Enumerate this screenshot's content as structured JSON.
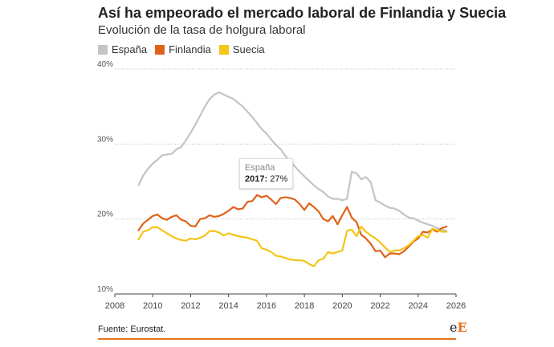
{
  "header": {
    "title": "Así ha empeorado el mercado laboral de Finlandia y Suecia",
    "subtitle": "Evolución de la tasa de holgura laboral"
  },
  "footer": {
    "source": "Fuente: Eurostat.",
    "logo_letters": [
      "e",
      "E"
    ]
  },
  "tooltip": {
    "series": "España",
    "year": "2017",
    "value": "27%"
  },
  "chart_data": {
    "type": "line",
    "x_range": [
      2008,
      2026
    ],
    "x_ticks": [
      "2008",
      "2010",
      "2012",
      "2014",
      "2016",
      "2018",
      "2020",
      "2022",
      "2024",
      "2026"
    ],
    "y_range": [
      10,
      40
    ],
    "y_ticks": [
      "10%",
      "20%",
      "30%",
      "40%"
    ],
    "grid": true,
    "legend": "top-left",
    "series": [
      {
        "name": "España",
        "color": "#c4c4c4",
        "points": [
          [
            2009.25,
            24.5
          ],
          [
            2009.5,
            25.8
          ],
          [
            2009.75,
            26.7
          ],
          [
            2010.0,
            27.4
          ],
          [
            2010.25,
            27.9
          ],
          [
            2010.5,
            28.5
          ],
          [
            2010.75,
            28.6
          ],
          [
            2011.0,
            28.7
          ],
          [
            2011.25,
            29.3
          ],
          [
            2011.5,
            29.6
          ],
          [
            2011.75,
            30.5
          ],
          [
            2012.0,
            31.5
          ],
          [
            2012.25,
            32.6
          ],
          [
            2012.5,
            33.8
          ],
          [
            2012.75,
            35.0
          ],
          [
            2013.0,
            36.0
          ],
          [
            2013.25,
            36.6
          ],
          [
            2013.5,
            36.9
          ],
          [
            2013.75,
            36.6
          ],
          [
            2014.0,
            36.3
          ],
          [
            2014.25,
            36.0
          ],
          [
            2014.5,
            35.5
          ],
          [
            2014.75,
            35.0
          ],
          [
            2015.0,
            34.3
          ],
          [
            2015.25,
            33.6
          ],
          [
            2015.5,
            32.8
          ],
          [
            2015.75,
            32.0
          ],
          [
            2016.0,
            31.4
          ],
          [
            2016.25,
            30.6
          ],
          [
            2016.5,
            29.9
          ],
          [
            2016.75,
            29.3
          ],
          [
            2017.0,
            28.4
          ],
          [
            2017.25,
            27.7
          ],
          [
            2017.5,
            27.0
          ],
          [
            2017.75,
            26.3
          ],
          [
            2018.0,
            25.7
          ],
          [
            2018.25,
            25.1
          ],
          [
            2018.5,
            24.5
          ],
          [
            2018.75,
            24.0
          ],
          [
            2019.0,
            23.6
          ],
          [
            2019.25,
            23.0
          ],
          [
            2019.5,
            22.7
          ],
          [
            2019.75,
            22.7
          ],
          [
            2020.0,
            22.5
          ],
          [
            2020.25,
            22.7
          ],
          [
            2020.5,
            26.3
          ],
          [
            2020.75,
            26.1
          ],
          [
            2021.0,
            25.3
          ],
          [
            2021.25,
            25.6
          ],
          [
            2021.5,
            24.9
          ],
          [
            2021.75,
            22.5
          ],
          [
            2022.0,
            22.2
          ],
          [
            2022.25,
            21.8
          ],
          [
            2022.5,
            21.5
          ],
          [
            2022.75,
            21.4
          ],
          [
            2023.0,
            21.1
          ],
          [
            2023.25,
            20.6
          ],
          [
            2023.5,
            20.2
          ],
          [
            2023.75,
            20.1
          ],
          [
            2024.0,
            19.8
          ],
          [
            2024.25,
            19.5
          ],
          [
            2024.5,
            19.3
          ],
          [
            2024.75,
            19.1
          ],
          [
            2025.0,
            18.8
          ],
          [
            2025.25,
            18.6
          ],
          [
            2025.5,
            18.4
          ]
        ]
      },
      {
        "name": "Finlandia",
        "color": "#e0621a",
        "points": [
          [
            2009.25,
            18.5
          ],
          [
            2009.5,
            19.4
          ],
          [
            2009.75,
            19.9
          ],
          [
            2010.0,
            20.4
          ],
          [
            2010.25,
            20.6
          ],
          [
            2010.5,
            20.1
          ],
          [
            2010.75,
            19.9
          ],
          [
            2011.0,
            20.3
          ],
          [
            2011.25,
            20.5
          ],
          [
            2011.5,
            19.9
          ],
          [
            2011.75,
            19.7
          ],
          [
            2012.0,
            19.1
          ],
          [
            2012.25,
            19.0
          ],
          [
            2012.5,
            20.0
          ],
          [
            2012.75,
            20.1
          ],
          [
            2013.0,
            20.5
          ],
          [
            2013.25,
            20.3
          ],
          [
            2013.5,
            20.4
          ],
          [
            2013.75,
            20.7
          ],
          [
            2014.0,
            21.1
          ],
          [
            2014.25,
            21.6
          ],
          [
            2014.5,
            21.3
          ],
          [
            2014.75,
            21.4
          ],
          [
            2015.0,
            22.3
          ],
          [
            2015.25,
            22.4
          ],
          [
            2015.5,
            23.2
          ],
          [
            2015.75,
            22.9
          ],
          [
            2016.0,
            23.1
          ],
          [
            2016.25,
            22.6
          ],
          [
            2016.5,
            22.0
          ],
          [
            2016.75,
            22.8
          ],
          [
            2017.0,
            22.9
          ],
          [
            2017.25,
            22.8
          ],
          [
            2017.5,
            22.6
          ],
          [
            2017.75,
            22.0
          ],
          [
            2018.0,
            21.2
          ],
          [
            2018.25,
            22.1
          ],
          [
            2018.5,
            21.6
          ],
          [
            2018.75,
            21.0
          ],
          [
            2019.0,
            20.0
          ],
          [
            2019.25,
            19.7
          ],
          [
            2019.5,
            20.4
          ],
          [
            2019.75,
            19.3
          ],
          [
            2020.0,
            20.5
          ],
          [
            2020.25,
            21.6
          ],
          [
            2020.5,
            20.2
          ],
          [
            2020.75,
            19.6
          ],
          [
            2021.0,
            17.9
          ],
          [
            2021.25,
            17.4
          ],
          [
            2021.5,
            16.7
          ],
          [
            2021.75,
            15.7
          ],
          [
            2022.0,
            15.8
          ],
          [
            2022.25,
            14.9
          ],
          [
            2022.5,
            15.4
          ],
          [
            2022.75,
            15.4
          ],
          [
            2023.0,
            15.3
          ],
          [
            2023.25,
            15.7
          ],
          [
            2023.5,
            16.3
          ],
          [
            2023.75,
            17.0
          ],
          [
            2024.0,
            17.4
          ],
          [
            2024.25,
            18.3
          ],
          [
            2024.5,
            18.2
          ],
          [
            2024.75,
            18.6
          ],
          [
            2025.0,
            18.3
          ],
          [
            2025.25,
            18.8
          ],
          [
            2025.5,
            19.0
          ]
        ]
      },
      {
        "name": "Suecia",
        "color": "#f2c517",
        "points": [
          [
            2009.25,
            17.3
          ],
          [
            2009.5,
            18.3
          ],
          [
            2009.75,
            18.5
          ],
          [
            2010.0,
            18.9
          ],
          [
            2010.25,
            18.9
          ],
          [
            2010.5,
            18.5
          ],
          [
            2010.75,
            18.1
          ],
          [
            2011.0,
            17.7
          ],
          [
            2011.25,
            17.4
          ],
          [
            2011.5,
            17.2
          ],
          [
            2011.75,
            17.1
          ],
          [
            2012.0,
            17.4
          ],
          [
            2012.25,
            17.3
          ],
          [
            2012.5,
            17.5
          ],
          [
            2012.75,
            17.8
          ],
          [
            2013.0,
            18.4
          ],
          [
            2013.25,
            18.4
          ],
          [
            2013.5,
            18.2
          ],
          [
            2013.75,
            17.8
          ],
          [
            2014.0,
            18.1
          ],
          [
            2014.25,
            17.9
          ],
          [
            2014.5,
            17.7
          ],
          [
            2014.75,
            17.6
          ],
          [
            2015.0,
            17.5
          ],
          [
            2015.25,
            17.3
          ],
          [
            2015.5,
            17.1
          ],
          [
            2015.75,
            16.1
          ],
          [
            2016.0,
            15.9
          ],
          [
            2016.25,
            15.6
          ],
          [
            2016.5,
            15.1
          ],
          [
            2016.75,
            15.0
          ],
          [
            2017.0,
            14.8
          ],
          [
            2017.25,
            14.6
          ],
          [
            2017.5,
            14.5
          ],
          [
            2017.75,
            14.5
          ],
          [
            2018.0,
            14.4
          ],
          [
            2018.25,
            14.0
          ],
          [
            2018.5,
            13.7
          ],
          [
            2018.75,
            14.5
          ],
          [
            2019.0,
            14.7
          ],
          [
            2019.25,
            15.6
          ],
          [
            2019.5,
            15.4
          ],
          [
            2019.75,
            15.6
          ],
          [
            2020.0,
            15.8
          ],
          [
            2020.25,
            18.4
          ],
          [
            2020.5,
            18.6
          ],
          [
            2020.75,
            17.7
          ],
          [
            2021.0,
            19.0
          ],
          [
            2021.25,
            18.3
          ],
          [
            2021.5,
            17.8
          ],
          [
            2021.75,
            17.4
          ],
          [
            2022.0,
            16.9
          ],
          [
            2022.25,
            16.2
          ],
          [
            2022.5,
            15.6
          ],
          [
            2022.75,
            15.8
          ],
          [
            2023.0,
            15.8
          ],
          [
            2023.25,
            16.1
          ],
          [
            2023.5,
            16.5
          ],
          [
            2023.75,
            17.1
          ],
          [
            2024.0,
            17.7
          ],
          [
            2024.25,
            17.9
          ],
          [
            2024.5,
            17.5
          ],
          [
            2024.75,
            18.7
          ],
          [
            2025.0,
            18.5
          ],
          [
            2025.25,
            18.3
          ],
          [
            2025.5,
            18.3
          ]
        ]
      }
    ]
  }
}
